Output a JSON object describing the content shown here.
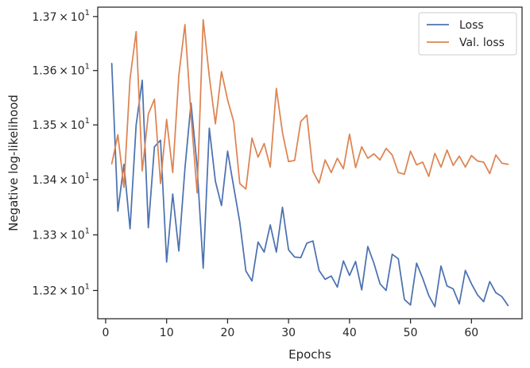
{
  "chart_data": {
    "type": "line",
    "xlabel": "Epochs",
    "ylabel": "Negative log-likelihood",
    "xlim": [
      -1.3,
      68.3
    ],
    "ylim": [
      13.1495,
      13.7175
    ],
    "y_scale": "log",
    "x_ticks": [
      0,
      10,
      20,
      30,
      40,
      50,
      60
    ],
    "y_ticks": [
      {
        "value": 13.2,
        "mantissa": "1.32",
        "base": "10",
        "exponent": "1"
      },
      {
        "value": 13.3,
        "mantissa": "1.33",
        "base": "10",
        "exponent": "1"
      },
      {
        "value": 13.4,
        "mantissa": "1.34",
        "base": "10",
        "exponent": "1"
      },
      {
        "value": 13.5,
        "mantissa": "1.35",
        "base": "10",
        "exponent": "1"
      },
      {
        "value": 13.6,
        "mantissa": "1.36",
        "base": "10",
        "exponent": "1"
      },
      {
        "value": 13.7,
        "mantissa": "1.37",
        "base": "10",
        "exponent": "1"
      }
    ],
    "times_symbol": "×",
    "grid": false,
    "legend_position": "upper right",
    "x": [
      1,
      2,
      3,
      4,
      5,
      6,
      7,
      8,
      9,
      10,
      11,
      12,
      13,
      14,
      15,
      16,
      17,
      18,
      19,
      20,
      21,
      22,
      23,
      24,
      25,
      26,
      27,
      28,
      29,
      30,
      31,
      32,
      33,
      34,
      35,
      36,
      37,
      38,
      39,
      40,
      41,
      42,
      43,
      44,
      45,
      46,
      47,
      48,
      49,
      50,
      51,
      52,
      53,
      54,
      55,
      56,
      57,
      58,
      59,
      60,
      61,
      62,
      63,
      64,
      65,
      66
    ],
    "series": [
      {
        "name": "Loss",
        "color": "#4c72b0",
        "values": [
          13.613,
          13.343,
          13.428,
          13.311,
          13.5,
          13.582,
          13.313,
          13.46,
          13.472,
          13.251,
          13.374,
          13.271,
          13.42,
          13.54,
          13.424,
          13.24,
          13.494,
          13.397,
          13.353,
          13.452,
          13.387,
          13.323,
          13.235,
          13.217,
          13.287,
          13.269,
          13.318,
          13.269,
          13.35,
          13.273,
          13.26,
          13.259,
          13.285,
          13.289,
          13.236,
          13.22,
          13.226,
          13.206,
          13.253,
          13.227,
          13.252,
          13.201,
          13.279,
          13.249,
          13.212,
          13.2,
          13.265,
          13.257,
          13.184,
          13.174,
          13.249,
          13.222,
          13.191,
          13.171,
          13.244,
          13.208,
          13.203,
          13.176,
          13.236,
          13.212,
          13.192,
          13.18,
          13.216,
          13.196,
          13.189,
          13.173
        ]
      },
      {
        "name": "Val. loss",
        "color": "#dd8452",
        "values": [
          13.429,
          13.482,
          13.386,
          13.585,
          13.672,
          13.416,
          13.52,
          13.547,
          13.393,
          13.51,
          13.413,
          13.591,
          13.685,
          13.518,
          13.376,
          13.694,
          13.589,
          13.502,
          13.598,
          13.546,
          13.506,
          13.393,
          13.383,
          13.476,
          13.441,
          13.466,
          13.423,
          13.567,
          13.486,
          13.433,
          13.435,
          13.506,
          13.518,
          13.415,
          13.394,
          13.436,
          13.413,
          13.439,
          13.42,
          13.483,
          13.422,
          13.46,
          13.439,
          13.447,
          13.436,
          13.457,
          13.445,
          13.413,
          13.41,
          13.452,
          13.427,
          13.432,
          13.406,
          13.448,
          13.423,
          13.454,
          13.426,
          13.443,
          13.423,
          13.444,
          13.434,
          13.432,
          13.411,
          13.445,
          13.43,
          13.428
        ]
      }
    ]
  }
}
